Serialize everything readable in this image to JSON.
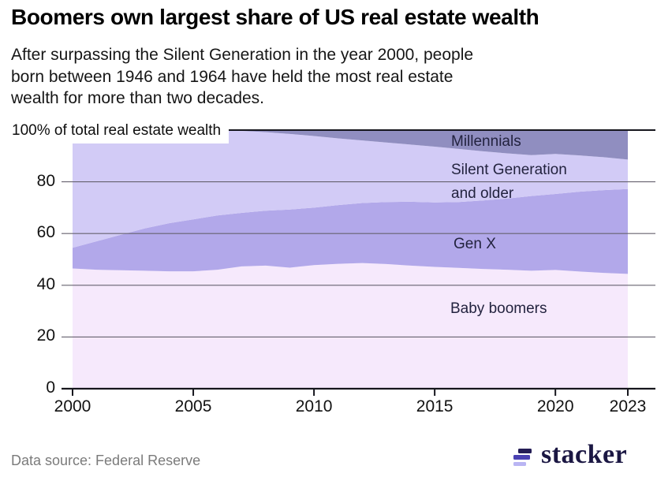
{
  "header": {
    "title": "Boomers own largest share of US real estate wealth",
    "subtitle_lines": [
      "After surpassing the Silent Generation in the year 2000, people",
      "born between 1946 and 1964 have held the most real estate",
      "wealth for more than two decades."
    ]
  },
  "chart_data": {
    "type": "area",
    "stacked": true,
    "title": "Boomers own largest share of US real estate wealth",
    "y_axis_annotation": "100% of total real estate wealth",
    "unit": "% of total real estate wealth",
    "x": [
      2000,
      2001,
      2002,
      2003,
      2004,
      2005,
      2006,
      2007,
      2008,
      2009,
      2010,
      2011,
      2012,
      2013,
      2014,
      2015,
      2016,
      2017,
      2018,
      2019,
      2020,
      2021,
      2022,
      2023
    ],
    "xlim": [
      2000,
      2023
    ],
    "ylim": [
      0,
      100
    ],
    "grid": true,
    "x_ticks": [
      "2000",
      "2005",
      "2010",
      "2015",
      "2020",
      "2023"
    ],
    "x_tick_values": [
      2000,
      2005,
      2010,
      2015,
      2020,
      2023
    ],
    "y_ticks": [
      "80",
      "60",
      "40",
      "20",
      "0"
    ],
    "legend_position": "labels-on-chart",
    "series": [
      {
        "name": "Baby boomers",
        "color": "#f6e9fc",
        "values": [
          46.5,
          46.0,
          45.8,
          45.6,
          45.4,
          45.4,
          46.0,
          47.3,
          47.6,
          46.8,
          47.8,
          48.3,
          48.6,
          48.2,
          47.6,
          47.1,
          46.7,
          46.3,
          46.0,
          45.6,
          45.9,
          45.3,
          44.8,
          44.4
        ]
      },
      {
        "name": "Gen X",
        "color": "#b2a8ea",
        "values": [
          8.0,
          11.0,
          13.7,
          16.4,
          18.6,
          20.1,
          21.0,
          20.7,
          21.2,
          22.5,
          22.2,
          22.7,
          23.2,
          24.0,
          24.7,
          24.9,
          25.5,
          26.5,
          27.5,
          28.9,
          29.4,
          30.9,
          32.0,
          32.8
        ]
      },
      {
        "name": "Silent Generation and older",
        "color": "#d2cbf6",
        "values": [
          45.5,
          43.0,
          40.5,
          38.0,
          36.0,
          34.5,
          33.0,
          31.7,
          30.4,
          29.2,
          27.7,
          25.8,
          24.2,
          23.0,
          22.1,
          21.6,
          20.5,
          19.0,
          17.5,
          15.8,
          15.5,
          14.0,
          12.7,
          11.4
        ]
      },
      {
        "name": "Millennials",
        "color": "#908ec0",
        "values": [
          0,
          0,
          0,
          0,
          0,
          0,
          0,
          0.3,
          0.8,
          1.5,
          2.3,
          3.2,
          4.0,
          4.8,
          5.6,
          6.4,
          7.3,
          8.2,
          9.0,
          9.7,
          9.2,
          9.8,
          10.5,
          11.4
        ]
      }
    ],
    "colors": {
      "grid": "#66626f",
      "axis": "#16161d",
      "label_text": "#23233f"
    }
  },
  "footer": {
    "source": "Data source: Federal Reserve",
    "brand": "stacker"
  }
}
